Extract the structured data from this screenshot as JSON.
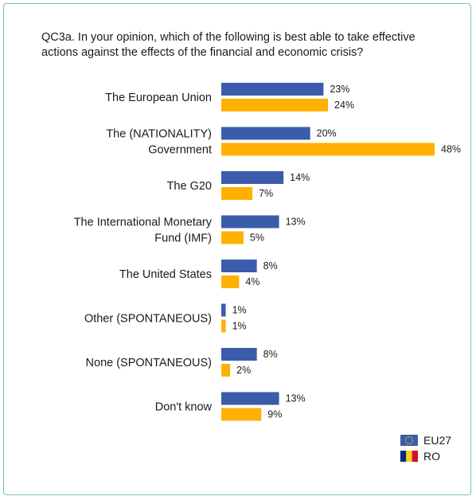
{
  "chart_data": {
    "type": "bar",
    "orientation": "horizontal",
    "title": "QC3a. In your opinion, which of the following is best able to take effective actions against the effects of the financial and economic crisis?",
    "categories": [
      [
        "The European Union"
      ],
      [
        "The (NATIONALITY)",
        "Government"
      ],
      [
        "The G20"
      ],
      [
        "The International Monetary",
        "Fund (IMF)"
      ],
      [
        "The United States"
      ],
      [
        "Other (SPONTANEOUS)"
      ],
      [
        "None (SPONTANEOUS)"
      ],
      [
        "Don't know"
      ]
    ],
    "value_suffix": "%",
    "series": [
      {
        "name": "EU27",
        "color": "#3b5bab",
        "icon": "eu-flag-icon",
        "values": [
          23,
          20,
          14,
          13,
          8,
          1,
          8,
          13
        ]
      },
      {
        "name": "RO",
        "color": "#ffb000",
        "icon": "romania-flag-icon",
        "values": [
          24,
          48,
          7,
          5,
          4,
          1,
          2,
          9
        ]
      }
    ],
    "xlim": [
      0,
      48
    ],
    "legend_position": "bottom-right",
    "grid": false
  }
}
